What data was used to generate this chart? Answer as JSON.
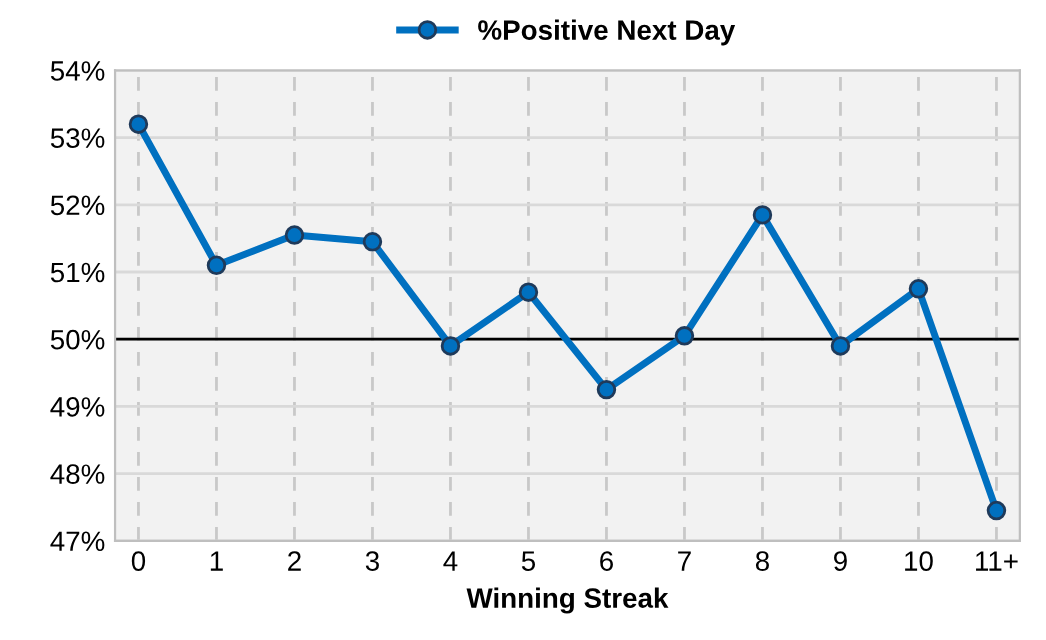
{
  "chart_data": {
    "type": "line",
    "xlabel": "Winning Streak",
    "categories": [
      "0",
      "1",
      "2",
      "3",
      "4",
      "5",
      "6",
      "7",
      "8",
      "9",
      "10",
      "11+"
    ],
    "series": [
      {
        "name": "%Positive Next Day",
        "color": "#0070c0",
        "values": [
          53.2,
          51.1,
          51.55,
          51.45,
          49.9,
          50.7,
          49.25,
          50.05,
          51.85,
          49.9,
          50.75,
          47.45
        ]
      }
    ],
    "ylim": [
      47,
      54
    ],
    "yticks": [
      {
        "value": 47,
        "label": "47%"
      },
      {
        "value": 48,
        "label": "48%"
      },
      {
        "value": 49,
        "label": "49%"
      },
      {
        "value": 50,
        "label": "50%"
      },
      {
        "value": 51,
        "label": "51%"
      },
      {
        "value": 52,
        "label": "52%"
      },
      {
        "value": 53,
        "label": "53%"
      },
      {
        "value": 54,
        "label": "54%"
      }
    ],
    "ref_lines": [
      {
        "axis": "y",
        "value": 50,
        "color": "#000000"
      }
    ],
    "grid": true,
    "legend": "top",
    "marker": "circle",
    "line_style": "solid"
  }
}
